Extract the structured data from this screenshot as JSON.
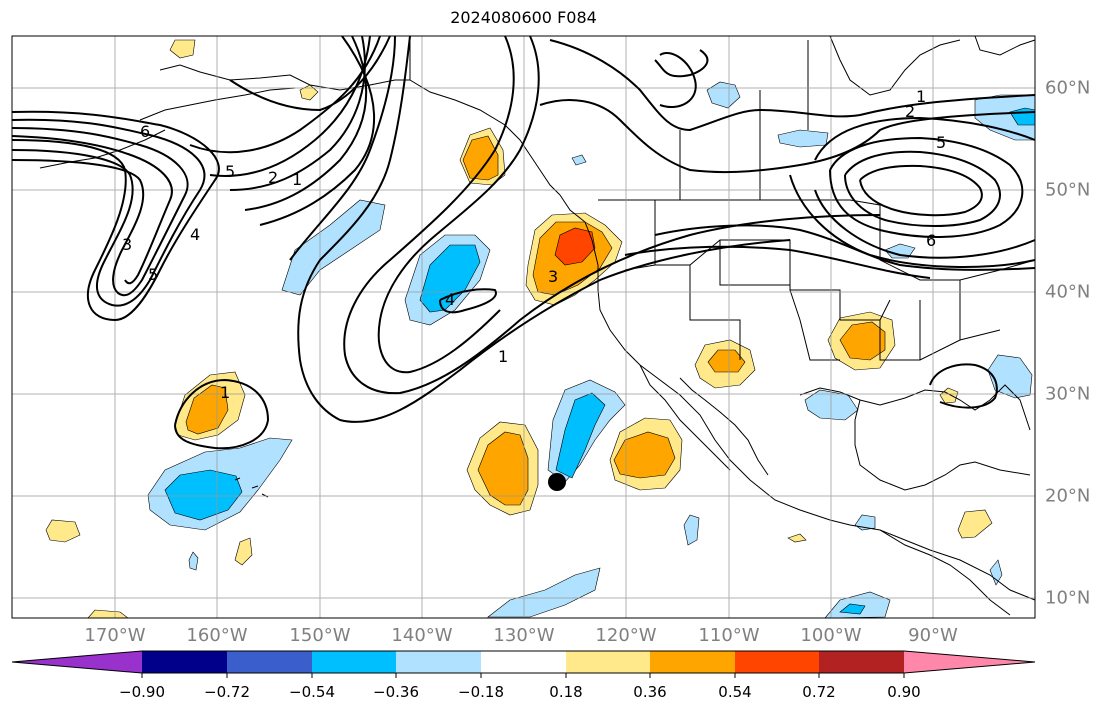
{
  "title": "2024080600 F084",
  "lon_labels": [
    "170°W",
    "160°W",
    "150°W",
    "140°W",
    "130°W",
    "120°W",
    "110°W",
    "100°W",
    "90°W"
  ],
  "lat_labels": [
    "60°N",
    "50°N",
    "40°N",
    "30°N",
    "20°N",
    "10°N"
  ],
  "colorbar": {
    "ticks": [
      "−0.90",
      "−0.72",
      "−0.54",
      "−0.36",
      "−0.18",
      "0.18",
      "0.36",
      "0.54",
      "0.72",
      "0.90"
    ],
    "colors": [
      "#9932cc",
      "#00008b",
      "#3a5fcd",
      "#00bfff",
      "#b0e2ff",
      "#ffffff",
      "#ffe98a",
      "#ffa500",
      "#ff4500",
      "#b22222",
      "#ff88aa"
    ]
  },
  "contour_labels": [
    "1",
    "2",
    "3",
    "4",
    "5",
    "6"
  ],
  "marker": "point"
}
